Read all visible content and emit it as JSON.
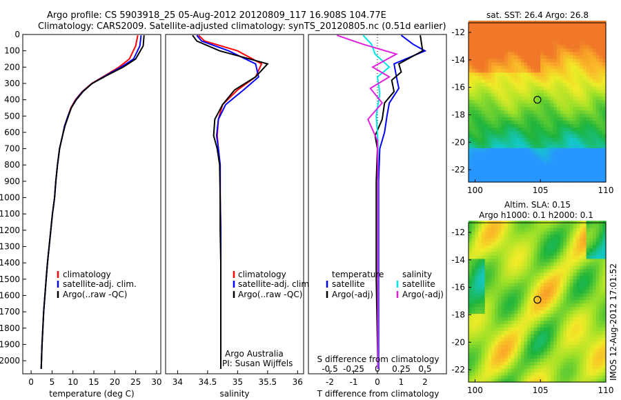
{
  "header": {
    "line1": "Argo profile: CS 5903918_25 05-Aug-2012 20120809_117 16.908S 104.77E",
    "line2": "Climatology: CARS2009. Satellite-adjusted climatology: synTS_20120805.nc (0.51d earlier)"
  },
  "colors": {
    "climatology": "#ff0000",
    "satellite": "#0000ff",
    "argo": "#000000",
    "salinity_satellite": "#00e5e5",
    "salinity_argo": "#e020e0"
  },
  "chart_data": [
    {
      "type": "line",
      "id": "temperature",
      "xlabel": "temperature (deg C)",
      "ylabel": "",
      "xlim": [
        -2,
        31
      ],
      "ylim": [
        2080,
        0
      ],
      "xticks": [
        0,
        5,
        10,
        15,
        20,
        25,
        30
      ],
      "xtick_labels": [
        "0",
        "5",
        "10",
        "15",
        "20",
        "25",
        "30"
      ],
      "yticks": [
        0,
        100,
        200,
        300,
        400,
        500,
        600,
        700,
        800,
        900,
        1000,
        1100,
        1200,
        1300,
        1400,
        1500,
        1600,
        1700,
        1800,
        1900,
        2000
      ],
      "ytick_labels": [
        "0",
        "100",
        "200",
        "300",
        "400",
        "500",
        "600",
        "700",
        "800",
        "900",
        "1000",
        "1100",
        "1200",
        "1300",
        "1400",
        "1500",
        "1600",
        "1700",
        "1800",
        "1900",
        "2000"
      ],
      "legend": [
        "climatology",
        "satellite-adj. clim.",
        "Argo(..raw -QC)"
      ],
      "series": [
        {
          "name": "climatology",
          "color": "#ff0000",
          "x": [
            25.5,
            25.0,
            23.5,
            21.0,
            17.8,
            14.5,
            12.2,
            10.6,
            9.5,
            8.8,
            8.0,
            7.5,
            6.8,
            6.3,
            5.9,
            5.6,
            5.1,
            4.7,
            4.3,
            3.9,
            3.6,
            3.3,
            3.0,
            2.8,
            2.6,
            2.4
          ],
          "depth": [
            5,
            70,
            150,
            200,
            250,
            300,
            350,
            400,
            450,
            500,
            560,
            620,
            700,
            800,
            900,
            1000,
            1100,
            1200,
            1300,
            1400,
            1500,
            1600,
            1700,
            1800,
            1900,
            2050
          ]
        },
        {
          "name": "satellite-adj. clim.",
          "color": "#0000ff",
          "x": [
            26.3,
            26.0,
            24.5,
            21.5,
            18.0,
            14.6,
            12.3,
            10.7,
            9.6,
            8.8,
            8.0,
            7.5,
            6.8,
            6.3,
            5.9,
            5.6,
            5.1,
            4.7,
            4.3,
            3.9,
            3.6,
            3.3,
            3.0,
            2.8,
            2.6,
            2.4
          ],
          "depth": [
            5,
            70,
            150,
            200,
            250,
            300,
            350,
            400,
            450,
            500,
            560,
            620,
            700,
            800,
            900,
            1000,
            1100,
            1200,
            1300,
            1400,
            1500,
            1600,
            1700,
            1800,
            1900,
            2050
          ]
        },
        {
          "name": "Argo(..raw -QC)",
          "color": "#000000",
          "x": [
            27.0,
            26.8,
            25.0,
            22.0,
            18.2,
            14.6,
            12.4,
            10.8,
            9.6,
            8.9,
            8.1,
            7.5,
            6.8,
            6.3,
            5.9,
            5.6,
            5.1,
            4.7,
            4.3,
            3.9,
            3.6,
            3.3,
            3.0,
            2.8,
            2.6,
            2.4
          ],
          "depth": [
            5,
            70,
            150,
            200,
            250,
            300,
            350,
            400,
            450,
            500,
            560,
            620,
            700,
            800,
            900,
            1000,
            1100,
            1200,
            1300,
            1400,
            1500,
            1600,
            1700,
            1800,
            1900,
            2050
          ]
        }
      ]
    },
    {
      "type": "line",
      "id": "salinity",
      "xlabel": "salinity",
      "xlim": [
        33.8,
        36.1
      ],
      "ylim": [
        2080,
        0
      ],
      "xticks": [
        34,
        34.5,
        35,
        35.5,
        36
      ],
      "xtick_labels": [
        "34",
        "34.5",
        "35",
        "35.5",
        "36"
      ],
      "legend": [
        "climatology",
        "satellite-adj. clim.",
        "Argo(..raw -QC)"
      ],
      "annotation": [
        "Argo Australia",
        "PI: Susan Wijffels"
      ],
      "series": [
        {
          "name": "climatology",
          "color": "#ff0000",
          "x": [
            34.35,
            34.45,
            35.0,
            35.4,
            35.3,
            35.0,
            34.75,
            34.68,
            34.66,
            34.68,
            34.71,
            34.71,
            34.72,
            34.72,
            34.72,
            34.72,
            34.72,
            34.72
          ],
          "depth": [
            5,
            40,
            100,
            180,
            260,
            340,
            430,
            520,
            620,
            700,
            800,
            1000,
            1200,
            1400,
            1600,
            1800,
            1950,
            2050
          ]
        },
        {
          "name": "satellite-adj. clim.",
          "color": "#0000ff",
          "x": [
            34.32,
            34.4,
            34.85,
            35.3,
            35.35,
            35.1,
            34.8,
            34.68,
            34.65,
            34.68,
            34.71,
            34.71,
            34.72,
            34.72,
            34.72,
            34.72,
            34.72,
            34.72
          ],
          "depth": [
            5,
            40,
            100,
            180,
            260,
            340,
            430,
            520,
            620,
            700,
            800,
            1000,
            1200,
            1400,
            1600,
            1800,
            1950,
            2050
          ]
        },
        {
          "name": "Argo(..raw -QC)",
          "color": "#000000",
          "x": [
            34.25,
            34.32,
            34.7,
            35.5,
            35.3,
            34.95,
            34.75,
            34.62,
            34.6,
            34.66,
            34.7,
            34.71,
            34.71,
            34.72,
            34.72,
            34.72,
            34.72,
            34.72
          ],
          "depth": [
            5,
            40,
            100,
            180,
            260,
            340,
            430,
            520,
            620,
            700,
            800,
            1000,
            1200,
            1400,
            1600,
            1800,
            1950,
            2050
          ]
        }
      ]
    },
    {
      "type": "line",
      "id": "differences",
      "xlabel": "T difference from climatology",
      "xlabel_top": "S difference from climatology",
      "xlim": [
        -2.9,
        2.9
      ],
      "ylim": [
        2080,
        0
      ],
      "xticks_bottom": [
        -2,
        -1,
        0,
        1,
        2
      ],
      "xtick_labels_bottom": [
        "-2",
        "-1",
        "0",
        "1",
        "2"
      ],
      "xticks_top": [
        -0.5,
        -0.25,
        0,
        0.25,
        0.5
      ],
      "xtick_labels_top": [
        "-0.5",
        "-0.25",
        "0",
        "0.25",
        "0.5"
      ],
      "legend_groups": [
        {
          "title": "temperature",
          "entries": [
            "satellite",
            "Argo(-adj)"
          ]
        },
        {
          "title": "salinity",
          "entries": [
            "satellite",
            "Argo(-adj)"
          ]
        }
      ],
      "series": [
        {
          "name": "temperature satellite",
          "color": "#0000ff",
          "x": [
            1.0,
            1.5,
            2.0,
            0.7,
            0.8,
            0.9,
            0.5,
            0.4,
            0.3,
            0.1,
            0.05,
            0.05,
            0.05
          ],
          "depth": [
            5,
            60,
            100,
            180,
            260,
            330,
            420,
            500,
            600,
            700,
            900,
            1500,
            2050
          ]
        },
        {
          "name": "temperature Argo(-adj)",
          "color": "#000000",
          "x": [
            1.8,
            1.9,
            0.9,
            1.0,
            0.6,
            0.7,
            0.3,
            0.2,
            -0.1,
            0.0,
            -0.05,
            -0.05,
            0.02
          ],
          "depth": [
            5,
            100,
            180,
            230,
            280,
            350,
            420,
            520,
            620,
            700,
            900,
            1500,
            2050
          ]
        },
        {
          "name": "salinity satellite",
          "color": "#00e5e5",
          "x": [
            -0.6,
            -0.25,
            -0.1,
            0.5,
            0.0,
            0.1,
            -0.05,
            0.02,
            0.02,
            0.02
          ],
          "depth": [
            5,
            60,
            120,
            200,
            260,
            360,
            500,
            650,
            900,
            2050
          ]
        },
        {
          "name": "salinity Argo(-adj)",
          "color": "#e020e0",
          "x": [
            -1.7,
            -0.6,
            0.8,
            -0.2,
            0.5,
            -0.3,
            0.2,
            -0.4,
            0.0,
            0.02,
            0.02
          ],
          "depth": [
            5,
            60,
            120,
            200,
            260,
            330,
            420,
            520,
            650,
            900,
            2050
          ]
        }
      ]
    },
    {
      "type": "heatmap",
      "id": "sst-map",
      "title": "sat. SST: 26.4 Argo: 26.8",
      "xlim": [
        99.5,
        110
      ],
      "ylim": [
        -22.9,
        -11.3
      ],
      "xticks": [
        100,
        105,
        110
      ],
      "xtick_labels": [
        "100",
        "105",
        "110"
      ],
      "yticks": [
        -12,
        -14,
        -16,
        -18,
        -20,
        -22
      ],
      "ytick_labels": [
        "-12",
        "-14",
        "-16",
        "-18",
        "-20",
        "-22"
      ],
      "marker": {
        "lon": 104.77,
        "lat": -16.908
      }
    },
    {
      "type": "heatmap",
      "id": "sla-map",
      "title": "Altim. SLA: 0.15",
      "subtitle": "Argo h1000: 0.1 h2000: 0.1",
      "xlim": [
        99.5,
        110
      ],
      "ylim": [
        -22.9,
        -11.3
      ],
      "xticks": [
        100,
        105,
        110
      ],
      "xtick_labels": [
        "100",
        "105",
        "110"
      ],
      "yticks": [
        -12,
        -14,
        -16,
        -18,
        -20,
        -22
      ],
      "ytick_labels": [
        "-12",
        "-14",
        "-16",
        "-18",
        "-20",
        "-22"
      ],
      "marker": {
        "lon": 104.77,
        "lat": -16.908
      }
    }
  ],
  "footer": {
    "stamp": "IMOS 12-Aug-2012 17:01:52"
  }
}
